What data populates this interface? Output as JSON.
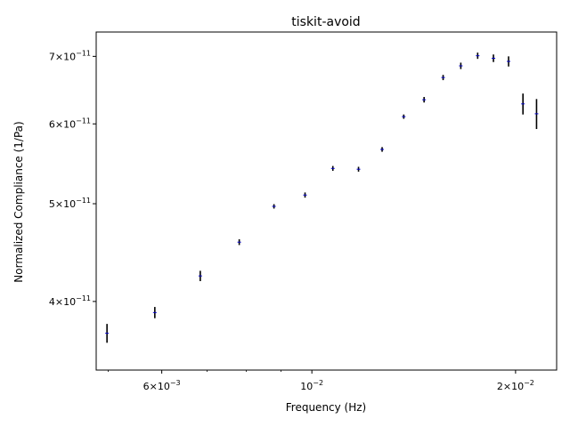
{
  "chart_data": {
    "type": "scatter",
    "title": "tiskit-avoid",
    "xlabel": "Frequency (Hz)",
    "ylabel": "Normalized Compliance (1/Pa)",
    "xscale": "log",
    "yscale": "log",
    "xlim": [
      0.0048,
      0.023
    ],
    "ylim": [
      3.42e-11,
      7.4e-11
    ],
    "grid": false,
    "legend": "none",
    "colors": {
      "marker": "#0000cc",
      "errorbar": "#000000"
    },
    "x_ticks": [
      {
        "value": 0.006,
        "mantissa": "6×10",
        "exp": "−3"
      },
      {
        "value": 0.01,
        "mantissa": "10",
        "exp": "−2"
      },
      {
        "value": 0.02,
        "mantissa": "2×10",
        "exp": "−2"
      }
    ],
    "y_ticks": [
      {
        "value": 4e-11,
        "mantissa": "4×10",
        "exp": "−11"
      },
      {
        "value": 5e-11,
        "mantissa": "5×10",
        "exp": "−11"
      },
      {
        "value": 6e-11,
        "mantissa": "6×10",
        "exp": "−11"
      },
      {
        "value": 7e-11,
        "mantissa": "7×10",
        "exp": "−11"
      }
    ],
    "points": [
      {
        "x": 0.00498,
        "y": 3.72e-11,
        "err": 8e-13
      },
      {
        "x": 0.00586,
        "y": 3.9e-11,
        "err": 5e-13
      },
      {
        "x": 0.00684,
        "y": 4.24e-11,
        "err": 5e-13
      },
      {
        "x": 0.00781,
        "y": 4.58e-11,
        "err": 3e-13
      },
      {
        "x": 0.00879,
        "y": 4.97e-11,
        "err": 2.5e-13
      },
      {
        "x": 0.00977,
        "y": 5.1e-11,
        "err": 3e-13
      },
      {
        "x": 0.01074,
        "y": 5.42e-11,
        "err": 3e-13
      },
      {
        "x": 0.01172,
        "y": 5.41e-11,
        "err": 3e-13
      },
      {
        "x": 0.0127,
        "y": 5.66e-11,
        "err": 3e-13
      },
      {
        "x": 0.01367,
        "y": 6.1e-11,
        "err": 3e-13
      },
      {
        "x": 0.01465,
        "y": 6.34e-11,
        "err": 4e-13
      },
      {
        "x": 0.01563,
        "y": 6.67e-11,
        "err": 4e-13
      },
      {
        "x": 0.0166,
        "y": 6.85e-11,
        "err": 5e-13
      },
      {
        "x": 0.01758,
        "y": 7.01e-11,
        "err": 5e-13
      },
      {
        "x": 0.01855,
        "y": 6.97e-11,
        "err": 6e-13
      },
      {
        "x": 0.01953,
        "y": 6.92e-11,
        "err": 8e-13
      },
      {
        "x": 0.02051,
        "y": 6.28e-11,
        "err": 1.5e-12
      },
      {
        "x": 0.02148,
        "y": 6.14e-11,
        "err": 2.1e-12
      }
    ]
  }
}
